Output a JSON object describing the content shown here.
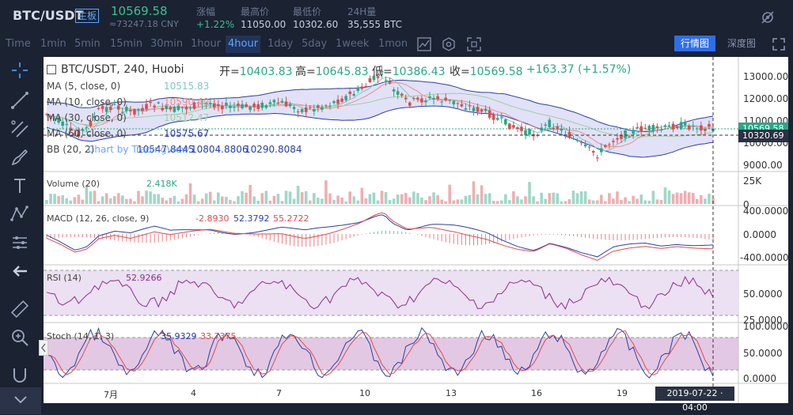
{
  "header": {
    "pair": "BTC/USDT",
    "board_badge": "主板",
    "price": "10569.58",
    "price_cny": "≈73247.18 CNY",
    "change_label": "涨幅",
    "change_value": "+1.22%",
    "high_label": "最高价",
    "high_value": "11050.00",
    "low_label": "最低价",
    "low_value": "10302.60",
    "volume_label": "24H量",
    "volume_value": "35,555 BTC"
  },
  "timeframes": [
    "Time",
    "1min",
    "5min",
    "15min",
    "30min",
    "1hour",
    "4hour",
    "1day",
    "5day",
    "1week",
    "1mon"
  ],
  "active_timeframe": "4hour",
  "view_tabs": {
    "market": "行情图",
    "depth": "深度图"
  },
  "legend": {
    "symbol": "BTC/USDT, 240, Huobi",
    "open_label": "开",
    "open_value": "10403.83",
    "high_label": "高",
    "high_value": "10645.83",
    "low_label": "低",
    "low_value": "10386.43",
    "close_label": "收",
    "close_value": "10569.58",
    "change": "+163.37 (+1.57%)",
    "ma5": {
      "label": "MA (5, close, 0)",
      "value": "10515.83"
    },
    "ma10": {
      "label": "MA (10, close, 0)",
      "value": "10590.40"
    },
    "ma30": {
      "label": "MA (30, close, 0)",
      "value": "10512.47"
    },
    "ma60": {
      "label": "MA (60, close, 0)",
      "value": "10575.67"
    },
    "bb": {
      "label": "BB (20, 2)",
      "v1": "10547.8445",
      "v2": "10804.8806",
      "v3": "10290.8084"
    },
    "watermark": "Chart by TradingView"
  },
  "price_axis": {
    "ticks": [
      "13000.00",
      "12000.00",
      "11000.00",
      "10000.00",
      "9000.00"
    ],
    "current_tag": "10569.58",
    "crosshair_tag": "10320.69"
  },
  "volume_pane": {
    "label": "Volume (20)",
    "value": "2.418K",
    "axis": [
      "25K",
      "0"
    ]
  },
  "macd_pane": {
    "label": "MACD (12, 26, close, 9)",
    "v1": "-2.8930",
    "v2": "52.3792",
    "v3": "55.2722",
    "axis": [
      "400.0000",
      "0.0000",
      "-400.0000"
    ]
  },
  "rsi_pane": {
    "label": "RSI (14)",
    "value": "52.9266",
    "axis": [
      "50.0000",
      "25.0000"
    ]
  },
  "stoch_pane": {
    "label": "Stoch (14, 1, 3)",
    "v1": "35.9329",
    "v2": "33.7375",
    "axis": [
      "100.0000",
      "50.0000",
      "0.0000"
    ]
  },
  "time_axis": [
    "7月",
    "4",
    "7",
    "10",
    "13",
    "16",
    "19"
  ],
  "crosshair_time": "2019-07-22 · 04:00",
  "colors": {
    "bg_dark": "#1b2232",
    "up": "#27a986",
    "down": "#dd4b4f",
    "accent": "#2f6ee6",
    "ma5": "#7ec8c0",
    "ma10": "#f08c8c",
    "ma30": "#9fcfa0",
    "ma60": "#2b3fa4",
    "bb_fill": "#c9c9f0",
    "rsi_fill": "#ece0f3",
    "stoch_fill": "#d9b6d9"
  }
}
